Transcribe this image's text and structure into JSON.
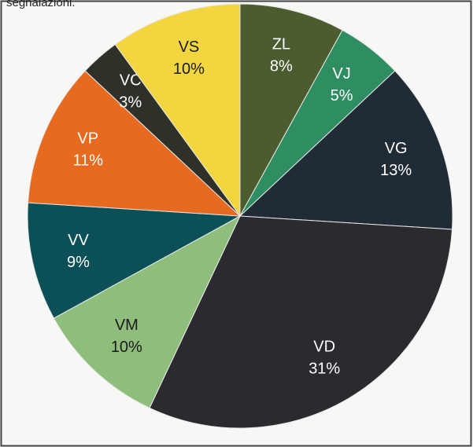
{
  "chart_data": {
    "type": "pie",
    "annotations": [
      "segnalazioni."
    ],
    "categories": [
      "ZL",
      "VJ",
      "VG",
      "VD",
      "VM",
      "VV",
      "VP",
      "VC",
      "VS"
    ],
    "values": [
      8,
      5,
      13,
      31,
      10,
      9,
      11,
      3,
      10
    ],
    "value_labels": [
      "8%",
      "5%",
      "13%",
      "31%",
      "10%",
      "9%",
      "11%",
      "3%",
      "10%"
    ],
    "colors": [
      "#4b5d2f",
      "#2f8d62",
      "#1f2b35",
      "#2a2a2f",
      "#8fbe7c",
      "#0b4f57",
      "#e66a1f",
      "#2f3129",
      "#f3d53f"
    ]
  }
}
